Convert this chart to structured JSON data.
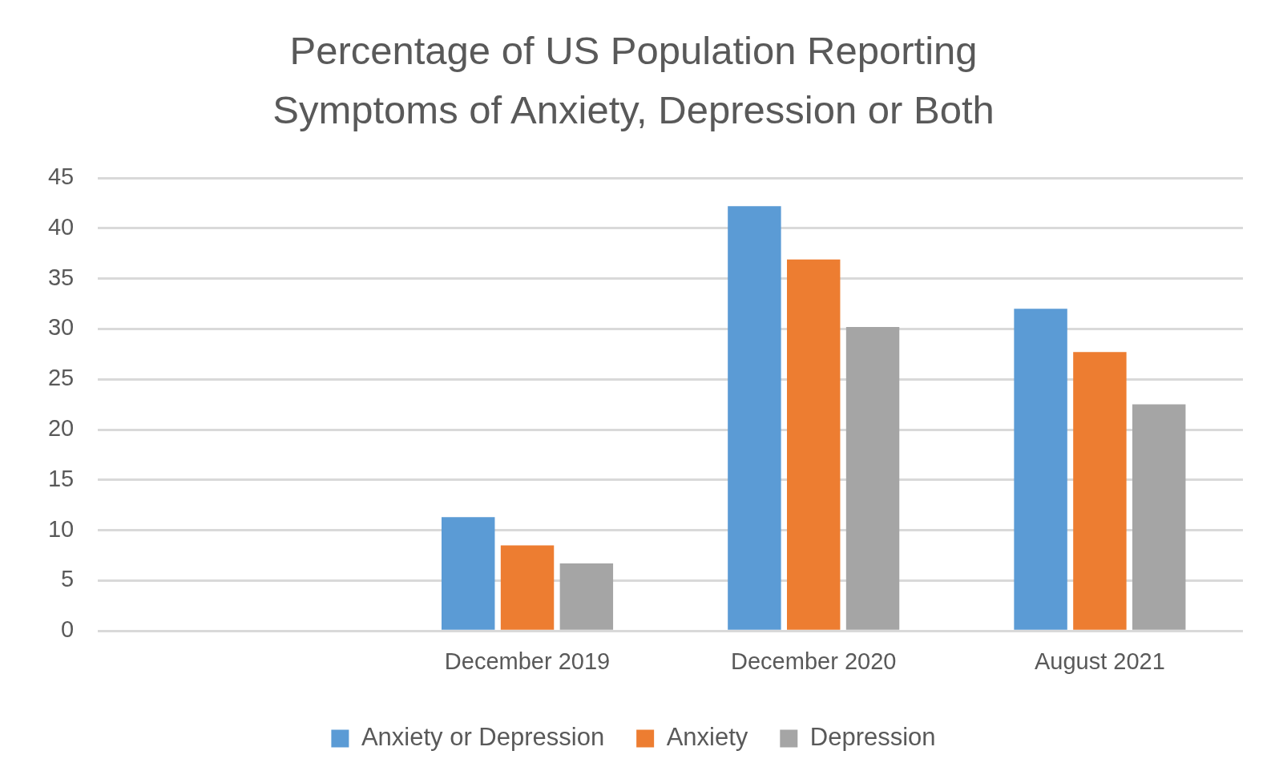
{
  "chart_data": {
    "type": "bar",
    "title": "Percentage of US Population Reporting\nSymptoms of Anxiety, Depression or Both",
    "categories": [
      null,
      "December 2019",
      "December 2020",
      "August 2021"
    ],
    "series": [
      {
        "name": "Anxiety or Depression",
        "color": "#5b9bd5",
        "values": [
          null,
          11.3,
          42.2,
          32.0
        ]
      },
      {
        "name": "Anxiety",
        "color": "#ed7d31",
        "values": [
          null,
          8.5,
          36.9,
          27.7
        ]
      },
      {
        "name": "Depression",
        "color": "#a5a5a5",
        "values": [
          null,
          6.7,
          30.2,
          22.5
        ]
      }
    ],
    "ylim": [
      0,
      45
    ],
    "yticks": [
      0,
      5,
      10,
      15,
      20,
      25,
      30,
      35,
      40,
      45
    ],
    "grid": "y",
    "legend": "bottom"
  }
}
